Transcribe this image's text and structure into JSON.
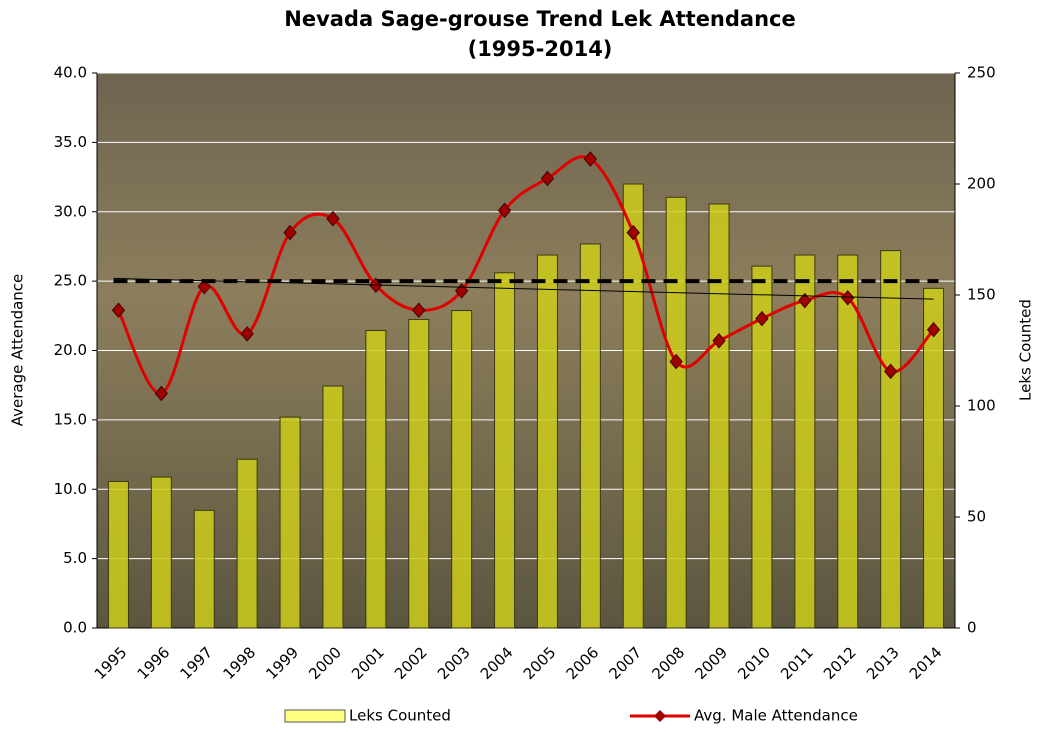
{
  "chart_data": {
    "type": "bar_line",
    "title": "Nevada Sage-grouse Trend Lek Attendance",
    "subtitle": "(1995-2014)",
    "y_label": "Average Attendance",
    "y2_label": "Leks Counted",
    "categories": [
      "1995",
      "1996",
      "1997",
      "1998",
      "1999",
      "2000",
      "2001",
      "2002",
      "2003",
      "2004",
      "2005",
      "2006",
      "2007",
      "2008",
      "2009",
      "2010",
      "2011",
      "2012",
      "2013",
      "2014"
    ],
    "series": [
      {
        "name": "Leks Counted",
        "type": "bar",
        "axis": "y2",
        "color": "#cccc1a",
        "values": [
          66,
          68,
          53,
          76,
          95,
          109,
          134,
          139,
          143,
          160,
          168,
          173,
          200,
          194,
          191,
          163,
          168,
          168,
          170,
          153
        ]
      },
      {
        "name": "Avg. Male Attendance",
        "type": "line",
        "axis": "y",
        "color": "#e00000",
        "values": [
          22.9,
          16.9,
          24.6,
          21.2,
          28.5,
          29.5,
          24.7,
          22.9,
          24.3,
          30.1,
          32.4,
          33.8,
          28.5,
          19.2,
          20.7,
          22.3,
          23.6,
          23.8,
          18.5,
          21.5
        ]
      }
    ],
    "mean_line": 25,
    "trend_line": [
      25.2,
      23.7
    ],
    "ylim": [
      0,
      40
    ],
    "yticks": [
      {
        "value": 0,
        "label": "0.0"
      },
      {
        "value": 5,
        "label": "5.0"
      },
      {
        "value": 10,
        "label": "10.0"
      },
      {
        "value": 15,
        "label": "15.0"
      },
      {
        "value": 20,
        "label": "20.0"
      },
      {
        "value": 25,
        "label": "25.0"
      },
      {
        "value": 30,
        "label": "30.0"
      },
      {
        "value": 35,
        "label": "35.0"
      },
      {
        "value": 40,
        "label": "40.0"
      }
    ],
    "y2lim": [
      0,
      250
    ],
    "y2ticks": [
      0,
      50,
      100,
      150,
      200,
      250
    ],
    "grid": true
  }
}
